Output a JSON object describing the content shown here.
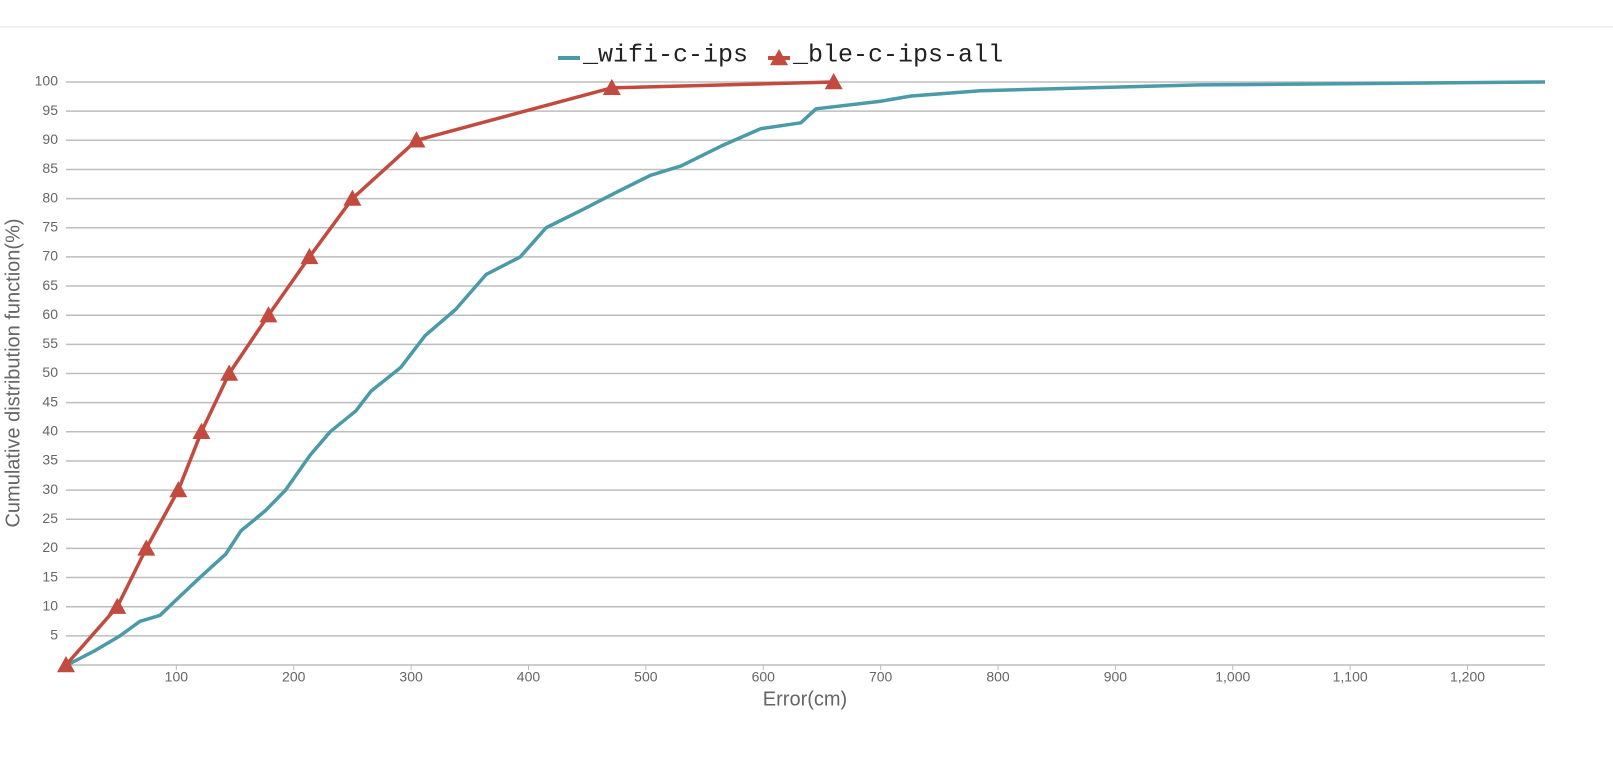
{
  "chart_data": {
    "type": "line",
    "x_label": "Error(cm)",
    "y_label": "Cumulative distribution function(%)",
    "xlim": [
      6,
      1266
    ],
    "ylim": [
      0,
      100
    ],
    "xticks": [
      100,
      200,
      300,
      400,
      500,
      600,
      700,
      800,
      900,
      {
        "value": 1000,
        "label": "1,000"
      },
      {
        "value": 1100,
        "label": "1,100"
      },
      {
        "value": 1200,
        "label": "1,200"
      }
    ],
    "yticks": [
      5,
      10,
      15,
      20,
      25,
      30,
      35,
      40,
      45,
      50,
      55,
      60,
      65,
      70,
      75,
      80,
      85,
      90,
      95,
      100
    ],
    "grid": true,
    "legend": "top",
    "series": [
      {
        "name": "_wifi-c-ips",
        "color": "#4a9aa8",
        "marker": "none",
        "x": [
          7,
          31,
          52,
          69,
          86,
          99,
          120,
          142,
          155,
          176,
          193,
          214,
          231,
          253,
          266,
          291,
          312,
          338,
          364,
          393,
          415,
          445,
          474,
          504,
          530,
          564,
          598,
          632,
          645,
          700,
          726,
          785,
          972,
          1266
        ],
        "values": [
          0,
          2.5,
          5,
          7.5,
          8.5,
          11,
          15,
          19,
          23,
          26.5,
          30,
          36,
          40,
          43.6,
          47,
          51,
          56.5,
          61,
          67,
          70,
          75,
          78,
          81,
          84,
          85.6,
          89,
          92,
          93,
          95.4,
          96.7,
          97.6,
          98.5,
          99.5,
          100
        ]
      },
      {
        "name": "_ble-c-ips-all",
        "color": "#c24a3e",
        "marker": "triangle",
        "x": [
          6,
          49.7,
          74.4,
          101.7,
          121.4,
          145,
          178.5,
          213.4,
          250,
          304.6,
          471,
          660
        ],
        "values": [
          0,
          10,
          20,
          30,
          40,
          50,
          60,
          70,
          80,
          90,
          99,
          100
        ]
      }
    ]
  }
}
